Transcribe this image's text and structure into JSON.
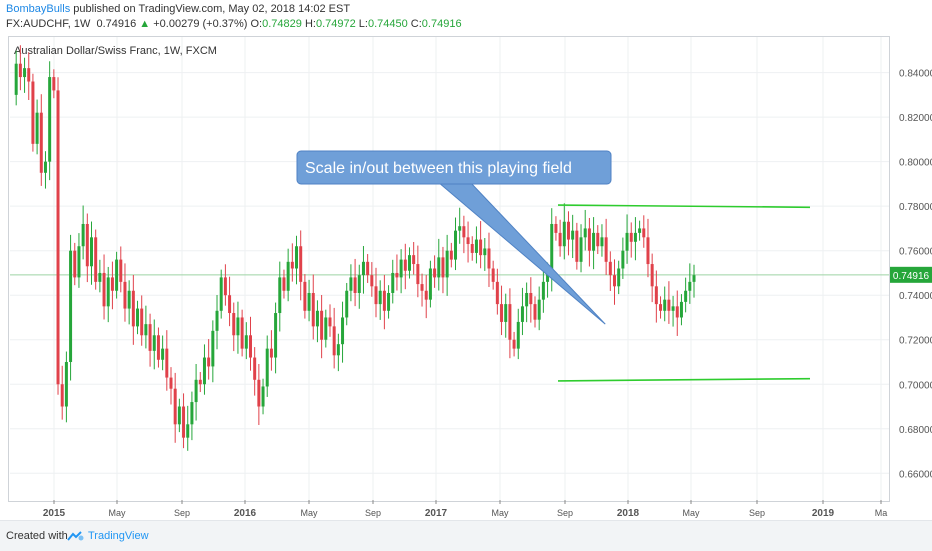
{
  "header": {
    "author": "BombayBulls",
    "published_text": "published on TradingView.com, May 02, 2018 14:02 EST",
    "symbol": "FX:AUDCHF, 1W",
    "last_price": "0.74916",
    "change_arrow": "▲",
    "change": "+0.00279 (+0.37%)",
    "o_label": "O:",
    "o_value": "0.74829",
    "h_label": "H:",
    "h_value": "0.74972",
    "l_label": "L:",
    "l_value": "0.74450",
    "c_label": "C:",
    "c_value": "0.74916"
  },
  "footer": {
    "created_with": "Created with",
    "brand": "TradingView",
    "logo_icon": "tradingview-logo-icon"
  },
  "colors": {
    "up": "#26a63a",
    "down": "#e0414a",
    "line_green": "#2ecc2e",
    "callout_fill": "#6f9fd8",
    "price_tag": "#26a63a",
    "current_line": "#9ed3a5"
  },
  "chart_data": {
    "type": "candlestick",
    "title": "Australian Dollar/Swiss Franc, 1W, FXCM",
    "x_ticks": [
      "2015",
      "May",
      "Sep",
      "2016",
      "May",
      "Sep",
      "2017",
      "May",
      "Sep",
      "2018",
      "May",
      "Sep",
      "2019",
      "Ma"
    ],
    "y_ticks": [
      "0.84000",
      "0.82000",
      "0.80000",
      "0.78000",
      "0.76000",
      "0.74000",
      "0.72000",
      "0.70000",
      "0.68000",
      "0.66000"
    ],
    "ylim": [
      0.648,
      0.856
    ],
    "current_price_label": "0.74916",
    "current_price": 0.74916,
    "horizontal_lines": [
      {
        "start": "2017-09",
        "end": "2019-01",
        "start_value": 0.7805,
        "end_value": 0.7795
      },
      {
        "start": "2017-09",
        "end": "2019-01",
        "start_value": 0.7015,
        "end_value": 0.7025
      }
    ],
    "annotation": {
      "text": "Scale in/out between this playing field",
      "pointer_date": "2017-12",
      "pointer_value": 0.727
    },
    "path": [
      0.83,
      0.844,
      0.838,
      0.842,
      0.836,
      0.808,
      0.822,
      0.795,
      0.8,
      0.838,
      0.832,
      0.7,
      0.69,
      0.71,
      0.76,
      0.748,
      0.762,
      0.772,
      0.753,
      0.766,
      0.746,
      0.75,
      0.735,
      0.748,
      0.742,
      0.756,
      0.746,
      0.734,
      0.742,
      0.726,
      0.734,
      0.722,
      0.727,
      0.715,
      0.722,
      0.711,
      0.716,
      0.703,
      0.698,
      0.682,
      0.69,
      0.676,
      0.682,
      0.692,
      0.702,
      0.7,
      0.712,
      0.708,
      0.724,
      0.733,
      0.748,
      0.74,
      0.732,
      0.722,
      0.73,
      0.716,
      0.722,
      0.712,
      0.702,
      0.69,
      0.699,
      0.716,
      0.712,
      0.732,
      0.748,
      0.742,
      0.755,
      0.752,
      0.762,
      0.746,
      0.733,
      0.741,
      0.726,
      0.733,
      0.72,
      0.73,
      0.726,
      0.713,
      0.718,
      0.73,
      0.742,
      0.748,
      0.741,
      0.749,
      0.755,
      0.749,
      0.744,
      0.736,
      0.742,
      0.733,
      0.741,
      0.75,
      0.748,
      0.756,
      0.751,
      0.758,
      0.754,
      0.745,
      0.742,
      0.738,
      0.752,
      0.748,
      0.757,
      0.748,
      0.76,
      0.756,
      0.769,
      0.771,
      0.766,
      0.763,
      0.759,
      0.765,
      0.758,
      0.761,
      0.752,
      0.746,
      0.736,
      0.728,
      0.736,
      0.72,
      0.716,
      0.728,
      0.735,
      0.741,
      0.736,
      0.729,
      0.738,
      0.746,
      0.75,
      0.772,
      0.768,
      0.762,
      0.773,
      0.765,
      0.769,
      0.755,
      0.766,
      0.77,
      0.76,
      0.768,
      0.762,
      0.766,
      0.755,
      0.749,
      0.744,
      0.752,
      0.76,
      0.768,
      0.764,
      0.768,
      0.77,
      0.766,
      0.754,
      0.744,
      0.736,
      0.733,
      0.738,
      0.733,
      0.735,
      0.73,
      0.737,
      0.742,
      0.746,
      0.749
    ]
  }
}
